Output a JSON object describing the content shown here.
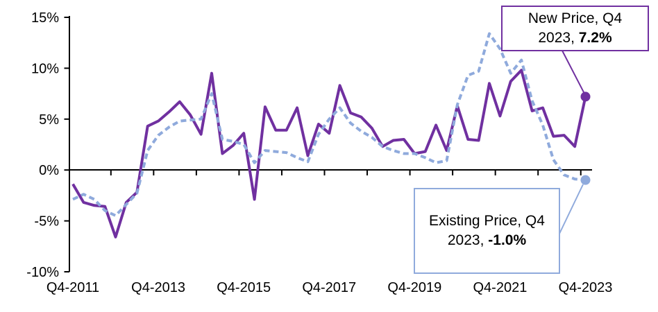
{
  "chart_data": {
    "type": "line",
    "title": "",
    "xlabel": "",
    "ylabel": "",
    "ylim": [
      -10,
      15
    ],
    "grid": false,
    "legend_position": "none (labels via callouts)",
    "y_tick_labels": [
      "15%",
      "10%",
      "5%",
      "0%",
      "-5%",
      "-10%"
    ],
    "x_axis_tick_labels": [
      "Q4-2011",
      "Q4-2013",
      "Q4-2015",
      "Q4-2017",
      "Q4-2019",
      "Q4-2021",
      "Q4-2023"
    ],
    "x_quarters": [
      "Q4-2011",
      "Q1-2012",
      "Q2-2012",
      "Q3-2012",
      "Q4-2012",
      "Q1-2013",
      "Q2-2013",
      "Q3-2013",
      "Q4-2013",
      "Q1-2014",
      "Q2-2014",
      "Q3-2014",
      "Q4-2014",
      "Q1-2015",
      "Q2-2015",
      "Q3-2015",
      "Q4-2015",
      "Q1-2016",
      "Q2-2016",
      "Q3-2016",
      "Q4-2016",
      "Q1-2017",
      "Q2-2017",
      "Q3-2017",
      "Q4-2017",
      "Q1-2018",
      "Q2-2018",
      "Q3-2018",
      "Q4-2018",
      "Q1-2019",
      "Q2-2019",
      "Q3-2019",
      "Q4-2019",
      "Q1-2020",
      "Q2-2020",
      "Q3-2020",
      "Q4-2020",
      "Q1-2021",
      "Q2-2021",
      "Q3-2021",
      "Q4-2021",
      "Q1-2022",
      "Q2-2022",
      "Q3-2022",
      "Q4-2022",
      "Q1-2023",
      "Q2-2023",
      "Q3-2023",
      "Q4-2023"
    ],
    "series": [
      {
        "name": "New Price",
        "color": "#7030A0",
        "style": "solid",
        "end_marker": true,
        "values": [
          -1.4,
          -3.2,
          -3.5,
          -3.6,
          -6.6,
          -3.2,
          -2.2,
          4.3,
          4.8,
          5.7,
          6.7,
          5.4,
          3.5,
          9.5,
          1.6,
          2.4,
          3.6,
          -2.9,
          6.2,
          3.9,
          3.9,
          6.1,
          1.4,
          4.5,
          3.6,
          8.3,
          5.6,
          5.2,
          4.1,
          2.3,
          2.9,
          3.0,
          1.6,
          1.8,
          4.4,
          1.9,
          6.3,
          3.0,
          2.9,
          8.5,
          5.3,
          8.7,
          9.8,
          5.8,
          6.1,
          3.3,
          3.4,
          2.3,
          7.2
        ]
      },
      {
        "name": "Existing Price",
        "color": "#8FAADC",
        "style": "dashed",
        "end_marker": true,
        "values": [
          -2.9,
          -2.4,
          -2.9,
          -4.0,
          -4.5,
          -3.4,
          -2.3,
          1.9,
          3.4,
          4.2,
          4.8,
          4.9,
          5.0,
          7.5,
          3.0,
          2.8,
          2.5,
          0.7,
          1.9,
          1.8,
          1.7,
          1.2,
          0.8,
          3.5,
          5.0,
          6.1,
          4.6,
          3.8,
          3.2,
          2.3,
          1.9,
          1.6,
          1.6,
          1.2,
          0.7,
          0.9,
          6.4,
          9.3,
          9.7,
          13.4,
          11.9,
          9.5,
          10.8,
          6.8,
          4.4,
          1.0,
          -0.5,
          -0.9,
          -1.0
        ]
      }
    ],
    "annotations": [
      {
        "series": "New Price",
        "line1": "New Price, Q4",
        "line2_prefix": "2023, ",
        "value": "7.2%",
        "full_text": "New Price, Q4 2023, 7.2%",
        "border_color": "#7030A0"
      },
      {
        "series": "Existing Price",
        "line1": "Existing Price, Q4",
        "line2_prefix": "2023, ",
        "value": "-1.0%",
        "full_text": "Existing Price, Q4 2023, -1.0%",
        "border_color": "#8FAADC"
      }
    ],
    "colors": {
      "new_price_line": "#7030A0",
      "existing_price_line": "#8FAADC",
      "axis": "#000000",
      "text": "#000000",
      "background": "#FFFFFF"
    }
  }
}
